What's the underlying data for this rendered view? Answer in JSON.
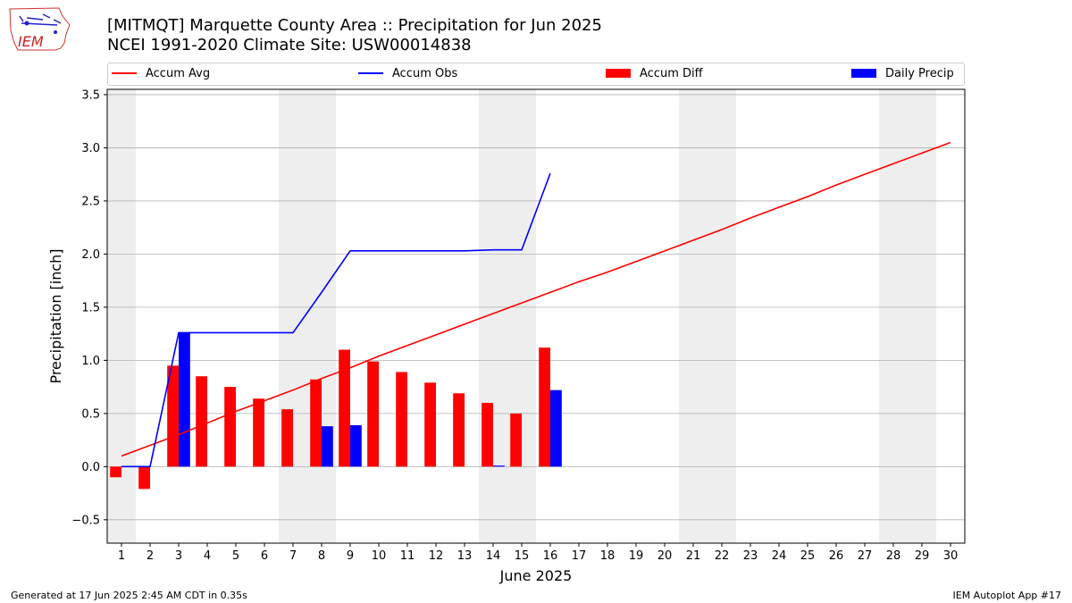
{
  "title_line1": "[MITMQT] Marquette County Area :: Precipitation for Jun 2025",
  "title_line2": "NCEI 1991-2020 Climate Site: USW00014838",
  "logo_text": "IEM",
  "footer_left": "Generated at 17 Jun 2025 2:45 AM CDT in 0.35s",
  "footer_right": "IEM Autoplot App #17",
  "colors": {
    "avg": "#ff0000",
    "obs": "#0000ff",
    "diff": "#ff0000",
    "daily": "#0000ff",
    "weekend": "#eeeeee",
    "grid": "#b0b0b0"
  },
  "chart_data": {
    "type": "bar",
    "xlabel": "June 2025",
    "ylabel": "Precipitation [inch]",
    "xlim": [
      0.5,
      30.5
    ],
    "ylim": [
      -0.72,
      3.55
    ],
    "x_ticks": [
      1,
      2,
      3,
      4,
      5,
      6,
      7,
      8,
      9,
      10,
      11,
      12,
      13,
      14,
      15,
      16,
      17,
      18,
      19,
      20,
      21,
      22,
      23,
      24,
      25,
      26,
      27,
      28,
      29,
      30
    ],
    "y_ticks": [
      -0.5,
      0.0,
      0.5,
      1.0,
      1.5,
      2.0,
      2.5,
      3.0,
      3.5
    ],
    "y_tick_labels": [
      "−0.5",
      "0.0",
      "0.5",
      "1.0",
      "1.5",
      "2.0",
      "2.5",
      "3.0",
      "3.5"
    ],
    "grid": "horizontal",
    "legend_position": "top",
    "weekend_spans": [
      [
        0.5,
        1.5
      ],
      [
        6.5,
        8.5
      ],
      [
        13.5,
        15.5
      ],
      [
        20.5,
        22.5
      ],
      [
        27.5,
        29.5
      ]
    ],
    "series": [
      {
        "name": "Accum Avg",
        "kind": "line",
        "days": [
          1,
          2,
          3,
          4,
          5,
          6,
          7,
          8,
          9,
          10,
          11,
          12,
          13,
          14,
          15,
          16,
          17,
          18,
          19,
          20,
          21,
          22,
          23,
          24,
          25,
          26,
          27,
          28,
          29,
          30
        ],
        "values": [
          0.1,
          0.2,
          0.3,
          0.41,
          0.52,
          0.62,
          0.72,
          0.83,
          0.93,
          1.04,
          1.14,
          1.24,
          1.34,
          1.44,
          1.54,
          1.64,
          1.74,
          1.83,
          1.93,
          2.03,
          2.13,
          2.23,
          2.34,
          2.44,
          2.54,
          2.65,
          2.75,
          2.85,
          2.95,
          3.05
        ]
      },
      {
        "name": "Accum Obs",
        "kind": "line",
        "days": [
          1,
          2,
          3,
          4,
          5,
          6,
          7,
          8,
          9,
          10,
          11,
          12,
          13,
          14,
          15,
          16
        ],
        "values": [
          0.0,
          0.0,
          1.26,
          1.26,
          1.26,
          1.26,
          1.26,
          1.64,
          2.03,
          2.03,
          2.03,
          2.03,
          2.03,
          2.04,
          2.04,
          2.76
        ]
      },
      {
        "name": "Accum Diff",
        "kind": "bar",
        "days": [
          1,
          2,
          3,
          4,
          5,
          6,
          7,
          8,
          9,
          10,
          11,
          12,
          13,
          14,
          15,
          16
        ],
        "values": [
          -0.1,
          -0.21,
          0.95,
          0.85,
          0.75,
          0.64,
          0.54,
          0.82,
          1.1,
          0.99,
          0.89,
          0.79,
          0.69,
          0.6,
          0.5,
          1.12
        ]
      },
      {
        "name": "Daily Precip",
        "kind": "bar",
        "days": [
          1,
          2,
          3,
          4,
          5,
          6,
          7,
          8,
          9,
          10,
          11,
          12,
          13,
          14,
          15,
          16
        ],
        "values": [
          0.0,
          0.0,
          1.26,
          0.0,
          0.0,
          0.0,
          0.0,
          0.38,
          0.39,
          0.0,
          0.0,
          0.0,
          0.0,
          0.01,
          0.0,
          0.72
        ]
      }
    ]
  }
}
